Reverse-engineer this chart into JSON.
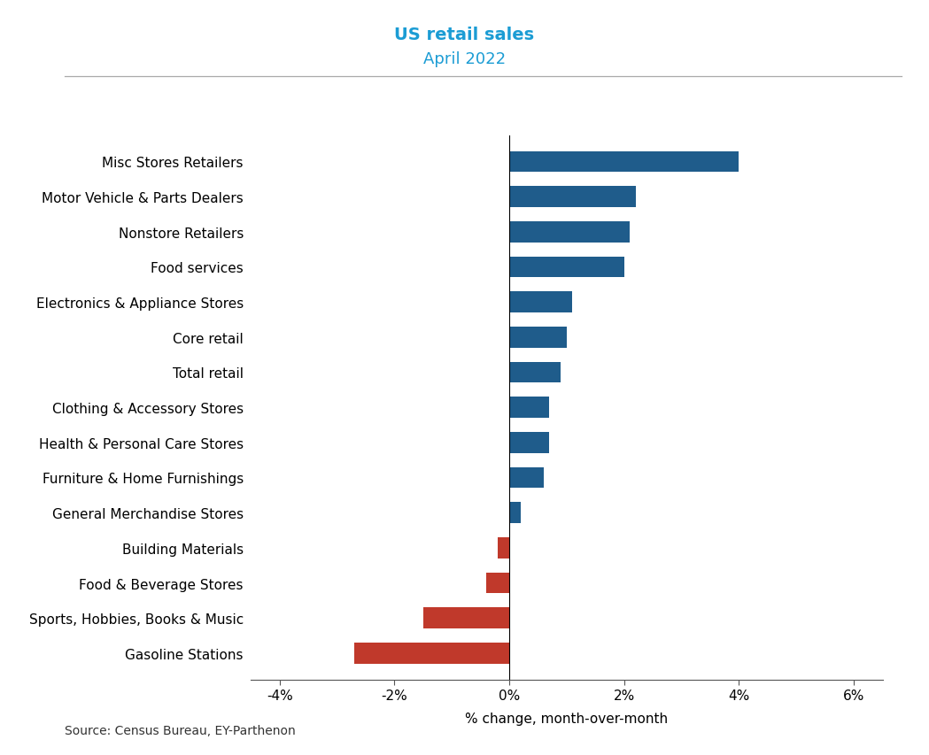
{
  "title_line1": "US retail sales",
  "title_line2": "April 2022",
  "title_color": "#1B9CD4",
  "subtitle_color": "#1B9CD4",
  "categories": [
    "Misc Stores Retailers",
    "Motor Vehicle & Parts Dealers",
    "Nonstore Retailers",
    "Food services",
    "Electronics & Appliance Stores",
    "Core retail",
    "Total retail",
    "Clothing & Accessory Stores",
    "Health & Personal Care Stores",
    "Furniture & Home Furnishings",
    "General Merchandise Stores",
    "Building Materials",
    "Food & Beverage Stores",
    "Sports, Hobbies, Books & Music",
    "Gasoline Stations"
  ],
  "values": [
    4.0,
    2.2,
    2.1,
    2.0,
    1.1,
    1.0,
    0.9,
    0.7,
    0.7,
    0.6,
    0.2,
    -0.2,
    -0.4,
    -1.5,
    -2.7
  ],
  "positive_color": "#1F5C8B",
  "negative_color": "#C0392B",
  "xlabel": "% change, month-over-month",
  "xlim": [
    -4.5,
    6.5
  ],
  "xticks": [
    -4,
    -2,
    0,
    2,
    4,
    6
  ],
  "xticklabels": [
    "-4%",
    "-2%",
    "0%",
    "2%",
    "4%",
    "6%"
  ],
  "source_text": "Source: Census Bureau, EY-Parthenon",
  "background_color": "#FFFFFF",
  "separator_line_color": "#AAAAAA",
  "bar_height": 0.6,
  "title_fontsize": 14,
  "subtitle_fontsize": 13,
  "tick_fontsize": 11,
  "xlabel_fontsize": 11,
  "source_fontsize": 10
}
